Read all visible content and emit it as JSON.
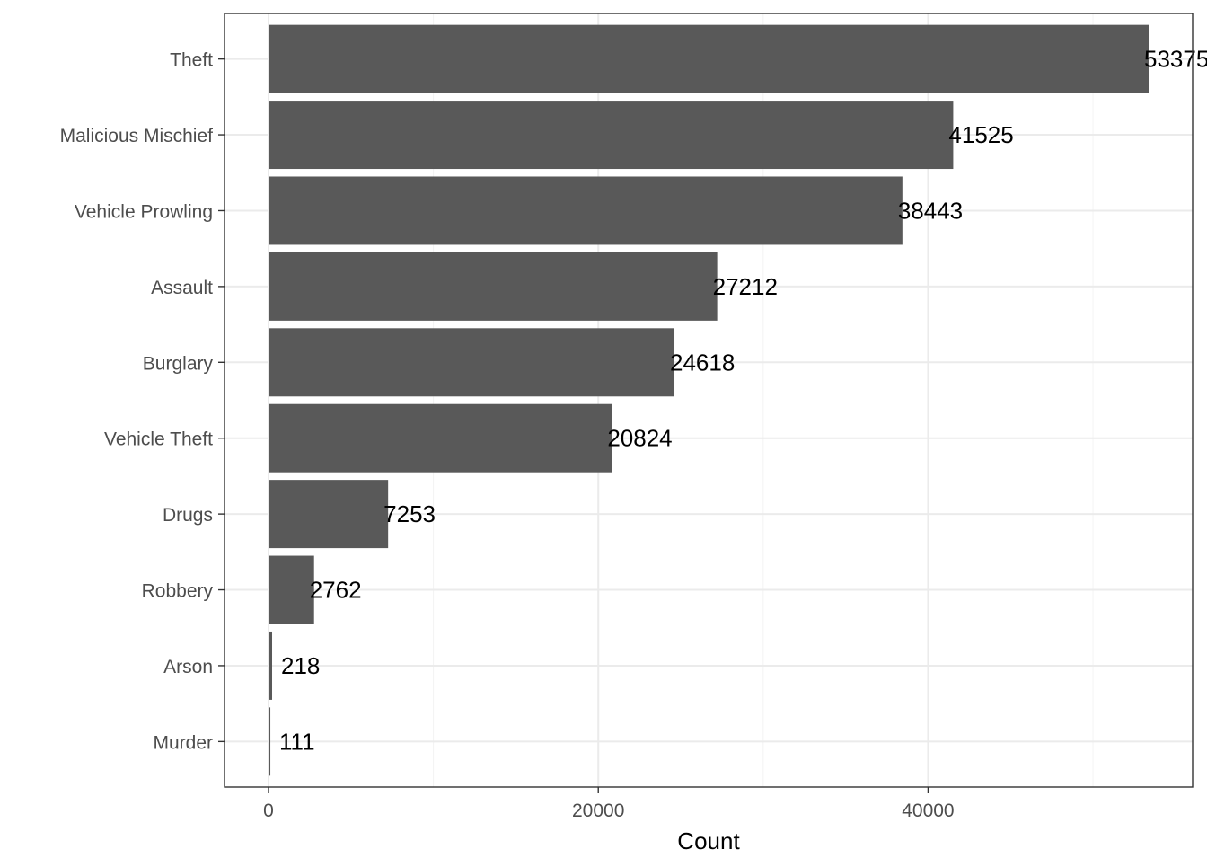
{
  "chart_data": {
    "type": "bar",
    "orientation": "horizontal",
    "categories": [
      "Theft",
      "Malicious Mischief",
      "Vehicle Prowling",
      "Assault",
      "Burglary",
      "Vehicle Theft",
      "Drugs",
      "Robbery",
      "Arson",
      "Murder"
    ],
    "values": [
      53375,
      41525,
      38443,
      27212,
      24618,
      20824,
      7253,
      2762,
      218,
      111
    ],
    "data_labels": [
      "53375",
      "41525",
      "38443",
      "27212",
      "24618",
      "20824",
      "7253",
      "2762",
      "218",
      "111"
    ],
    "x_ticks": [
      0,
      20000,
      40000
    ],
    "x_tick_labels": [
      "0",
      "20000",
      "40000"
    ],
    "xlim": [
      -2669,
      56044
    ],
    "xlabel": "Count",
    "ylabel": "",
    "title": "",
    "grid": true,
    "legend": "none",
    "colors": {
      "bar": "#595959",
      "panel_border": "#333333",
      "grid_major": "#ebebeb",
      "grid_minor": "#f4f4f4",
      "tick_text": "#4d4d4d",
      "label_text": "#000000"
    }
  }
}
